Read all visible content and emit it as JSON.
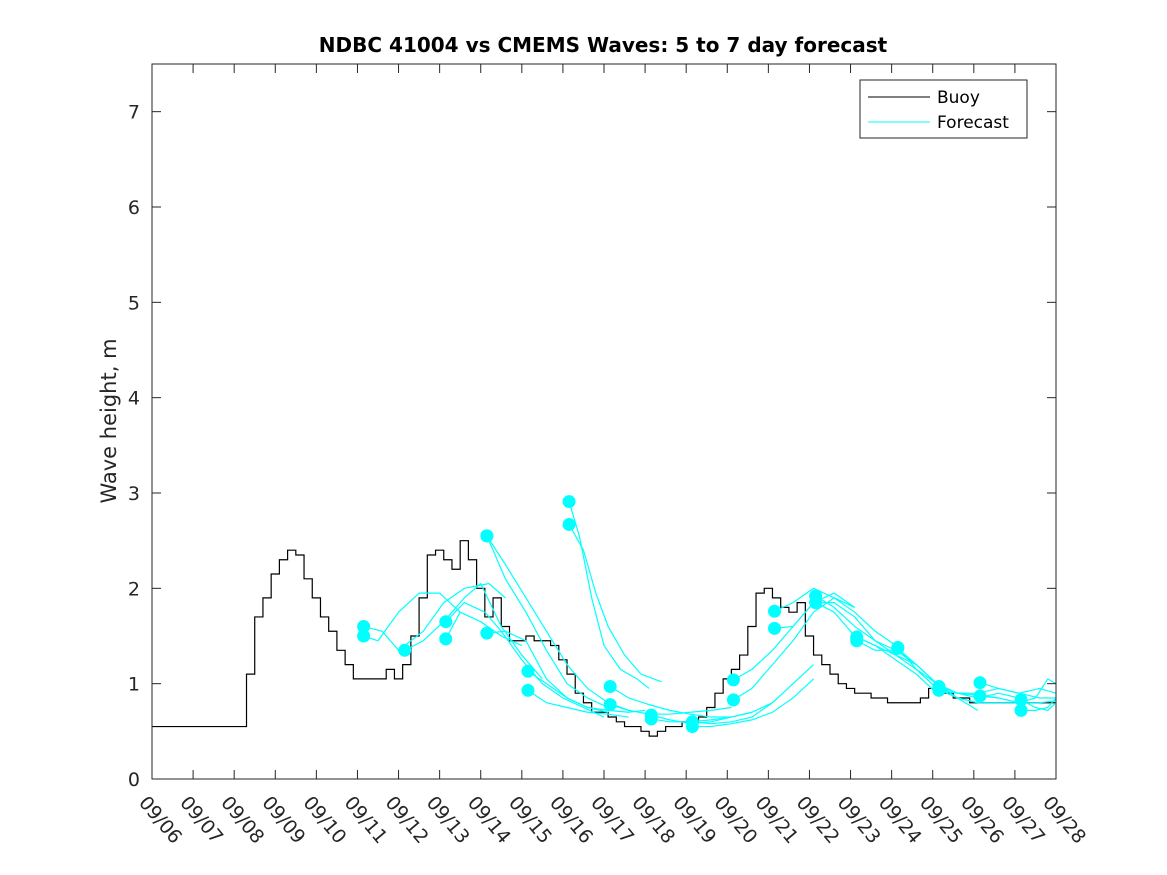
{
  "chart_data": {
    "type": "line",
    "title": "NDBC 41004 vs CMEMS Waves: 5 to 7 day forecast",
    "xlabel": "",
    "ylabel": "Wave height, m",
    "xlim": [
      "09/06",
      "09/28"
    ],
    "ylim": [
      0,
      7.5
    ],
    "x_ticks": [
      "09/06",
      "09/07",
      "09/08",
      "09/09",
      "09/10",
      "09/11",
      "09/12",
      "09/13",
      "09/14",
      "09/15",
      "09/16",
      "09/17",
      "09/18",
      "09/19",
      "09/20",
      "09/21",
      "09/22",
      "09/23",
      "09/24",
      "09/25",
      "09/26",
      "09/27",
      "09/28"
    ],
    "y_ticks": [
      0,
      1,
      2,
      3,
      4,
      5,
      6,
      7
    ],
    "grid": false,
    "legend": {
      "placement": "top-right",
      "entries": [
        "Buoy",
        "Forecast"
      ]
    },
    "colors": {
      "buoy": "#000000",
      "forecast": "#00FFFF",
      "axes": "#262626"
    },
    "series": [
      {
        "name": "Buoy",
        "x_days": [
          0,
          0.5,
          1,
          1.5,
          1.9,
          2.1,
          2.3,
          2.5,
          2.7,
          2.9,
          3.1,
          3.3,
          3.5,
          3.7,
          3.9,
          4.1,
          4.3,
          4.5,
          4.7,
          4.9,
          5.1,
          5.3,
          5.5,
          5.7,
          5.9,
          6.1,
          6.3,
          6.5,
          6.7,
          6.9,
          7.1,
          7.3,
          7.5,
          7.7,
          7.9,
          8.1,
          8.3,
          8.5,
          8.7,
          8.9,
          9.1,
          9.3,
          9.5,
          9.7,
          9.9,
          10.1,
          10.3,
          10.5,
          10.7,
          10.9,
          11.1,
          11.3,
          11.5,
          11.7,
          11.9,
          12.1,
          12.3,
          12.5,
          12.7,
          12.9,
          13.1,
          13.3,
          13.5,
          13.7,
          13.9,
          14.1,
          14.3,
          14.5,
          14.7,
          14.9,
          15.1,
          15.3,
          15.5,
          15.7,
          15.9,
          16.1,
          16.3,
          16.5,
          16.7,
          16.9,
          17.1,
          17.3,
          17.5,
          17.7,
          17.9,
          18.1,
          18.3,
          18.5,
          18.7,
          18.9,
          19.1,
          19.3,
          19.5,
          19.7,
          19.9,
          20.1,
          20.3,
          20.5,
          20.7,
          20.9,
          21.1,
          21.3,
          21.5,
          21.7,
          21.9,
          22
        ],
        "values": [
          0.55,
          0.55,
          0.55,
          0.55,
          0.55,
          0.55,
          1.1,
          1.7,
          1.9,
          2.15,
          2.3,
          2.4,
          2.35,
          2.1,
          1.9,
          1.7,
          1.55,
          1.35,
          1.2,
          1.05,
          1.05,
          1.05,
          1.05,
          1.15,
          1.05,
          1.2,
          1.5,
          1.9,
          2.35,
          2.4,
          2.3,
          2.2,
          2.5,
          2.3,
          2.0,
          1.7,
          1.9,
          1.6,
          1.45,
          1.45,
          1.5,
          1.45,
          1.45,
          1.4,
          1.25,
          1.1,
          0.9,
          0.8,
          0.7,
          0.7,
          0.65,
          0.6,
          0.55,
          0.55,
          0.5,
          0.45,
          0.5,
          0.55,
          0.55,
          0.6,
          0.6,
          0.65,
          0.75,
          0.9,
          1.05,
          1.15,
          1.3,
          1.6,
          1.95,
          2.0,
          1.9,
          1.8,
          1.75,
          1.85,
          1.5,
          1.3,
          1.2,
          1.1,
          1.0,
          0.95,
          0.9,
          0.9,
          0.85,
          0.85,
          0.8,
          0.8,
          0.8,
          0.8,
          0.85,
          0.95,
          0.95,
          0.9,
          0.85,
          0.85,
          0.8,
          0.8,
          0.8,
          0.8,
          0.8,
          0.8,
          0.8,
          0.8,
          0.8,
          0.8,
          0.8,
          0.8
        ]
      },
      {
        "name": "Forecast",
        "runs": [
          {
            "x_days": [
              5.15,
              5.5,
              6.0,
              6.5,
              7.0,
              7.5
            ],
            "values": [
              1.5,
              1.45,
              1.75,
              1.95,
              1.95,
              1.75
            ]
          },
          {
            "x_days": [
              5.15,
              5.6,
              6.0,
              6.6,
              7.1,
              7.6,
              8.2,
              8.6
            ],
            "values": [
              1.6,
              1.55,
              1.35,
              1.55,
              1.85,
              2.0,
              2.05,
              1.9
            ]
          },
          {
            "x_days": [
              6.15,
              6.6,
              7.1,
              7.6,
              8.0,
              8.5,
              9.0,
              9.5
            ],
            "values": [
              1.35,
              1.45,
              1.65,
              1.9,
              2.05,
              1.6,
              1.3,
              1.05
            ]
          },
          {
            "x_days": [
              7.15,
              7.6,
              8.1,
              8.5,
              9.0,
              9.5,
              10.0,
              10.5,
              11.0
            ],
            "values": [
              1.65,
              1.85,
              1.75,
              1.55,
              1.25,
              1.0,
              0.85,
              0.75,
              0.65
            ]
          },
          {
            "x_days": [
              7.15,
              7.5,
              8.0,
              8.5,
              9.0
            ],
            "values": [
              1.47,
              1.75,
              1.65,
              1.5,
              1.4
            ]
          },
          {
            "x_days": [
              8.15,
              8.6,
              9.1,
              9.6,
              10.1,
              10.6,
              11.1
            ],
            "values": [
              2.55,
              2.1,
              1.75,
              1.35,
              1.0,
              0.85,
              0.75
            ]
          },
          {
            "x_days": [
              8.15,
              8.6,
              9.1,
              9.6,
              10.1,
              10.6,
              11.1,
              11.6
            ],
            "values": [
              2.55,
              2.25,
              1.9,
              1.55,
              1.2,
              0.95,
              0.8,
              0.72
            ]
          },
          {
            "x_days": [
              8.15,
              8.6,
              9.1,
              9.6,
              10.1,
              10.6,
              11.1
            ],
            "values": [
              1.53,
              1.55,
              1.45,
              1.05,
              0.85,
              0.75,
              0.7
            ]
          },
          {
            "x_days": [
              9.15,
              9.6,
              10.1,
              10.6,
              11.1,
              11.6,
              12.0
            ],
            "values": [
              1.13,
              1.0,
              0.85,
              0.75,
              0.72,
              0.7,
              0.72
            ]
          },
          {
            "x_days": [
              9.15,
              9.6,
              10.1,
              10.6,
              11.1,
              11.6
            ],
            "values": [
              0.93,
              0.8,
              0.75,
              0.7,
              0.68,
              0.65
            ]
          },
          {
            "x_days": [
              10.15,
              10.4,
              10.7,
              11.0,
              11.4,
              11.8,
              12.1
            ],
            "values": [
              2.91,
              2.55,
              1.9,
              1.4,
              1.15,
              1.05,
              0.95
            ]
          },
          {
            "x_days": [
              10.15,
              10.5,
              10.8,
              11.1,
              11.5,
              11.9,
              12.4
            ],
            "values": [
              2.67,
              2.4,
              1.95,
              1.6,
              1.3,
              1.1,
              1.02
            ]
          },
          {
            "x_days": [
              11.15,
              11.6,
              12.1,
              12.6,
              13.1,
              13.6,
              14.1
            ],
            "values": [
              0.97,
              0.85,
              0.78,
              0.72,
              0.68,
              0.65,
              0.65
            ]
          },
          {
            "x_days": [
              11.15,
              11.6,
              12.1,
              12.6,
              13.1,
              13.6,
              14.1
            ],
            "values": [
              0.78,
              0.72,
              0.68,
              0.68,
              0.7,
              0.72,
              0.75
            ]
          },
          {
            "x_days": [
              12.15,
              12.6,
              13.1,
              13.6,
              14.1,
              14.6,
              15.1
            ],
            "values": [
              0.67,
              0.62,
              0.58,
              0.6,
              0.65,
              0.7,
              0.8
            ]
          },
          {
            "x_days": [
              12.15,
              12.6,
              13.1,
              13.6,
              14.1,
              14.6
            ],
            "values": [
              0.63,
              0.6,
              0.6,
              0.62,
              0.65,
              0.7
            ]
          },
          {
            "x_days": [
              13.15,
              13.6,
              14.1,
              14.6,
              15.1,
              15.6,
              16.1
            ],
            "values": [
              0.6,
              0.58,
              0.6,
              0.65,
              0.8,
              1.0,
              1.2
            ]
          },
          {
            "x_days": [
              13.15,
              13.6,
              14.1,
              14.6,
              15.1,
              15.6,
              16.1
            ],
            "values": [
              0.55,
              0.55,
              0.58,
              0.62,
              0.7,
              0.85,
              1.05
            ]
          },
          {
            "x_days": [
              14.15,
              14.6,
              15.1,
              15.6,
              16.1,
              16.6,
              17.1
            ],
            "values": [
              1.04,
              1.15,
              1.35,
              1.6,
              1.85,
              1.95,
              1.8
            ]
          },
          {
            "x_days": [
              14.15,
              14.6,
              15.1,
              15.6,
              16.1,
              16.6,
              17.1
            ],
            "values": [
              0.83,
              0.95,
              1.2,
              1.45,
              1.75,
              1.9,
              1.8
            ]
          },
          {
            "x_days": [
              15.15,
              15.6,
              16.1,
              16.6,
              17.1,
              17.6,
              18.1
            ],
            "values": [
              1.76,
              1.85,
              2.0,
              1.9,
              1.75,
              1.55,
              1.4
            ]
          },
          {
            "x_days": [
              15.15,
              15.6,
              16.1,
              16.6,
              17.1,
              17.6,
              18.1
            ],
            "values": [
              1.58,
              1.6,
              1.85,
              1.85,
              1.7,
              1.45,
              1.35
            ]
          },
          {
            "x_days": [
              16.15,
              16.6,
              17.1,
              17.6,
              18.1,
              18.6,
              19.1
            ],
            "values": [
              1.92,
              1.8,
              1.6,
              1.45,
              1.3,
              1.15,
              1.0
            ]
          },
          {
            "x_days": [
              16.15,
              16.6,
              17.1,
              17.6,
              18.1,
              18.6,
              19.1
            ],
            "values": [
              1.85,
              1.75,
              1.5,
              1.4,
              1.25,
              1.1,
              0.9
            ]
          },
          {
            "x_days": [
              17.15,
              17.6,
              18.1,
              18.6,
              19.1,
              19.6,
              20.1
            ],
            "values": [
              1.49,
              1.4,
              1.3,
              1.2,
              1.0,
              0.85,
              0.8
            ]
          },
          {
            "x_days": [
              17.15,
              17.6,
              18.1,
              18.6,
              19.1,
              19.6,
              20.1
            ],
            "values": [
              1.45,
              1.35,
              1.35,
              1.2,
              1.0,
              0.85,
              0.72
            ]
          },
          {
            "x_days": [
              18.15,
              18.6,
              19.1,
              19.6,
              20.1,
              20.6,
              21.1
            ],
            "values": [
              1.37,
              1.2,
              1.0,
              0.9,
              0.85,
              0.9,
              0.85
            ]
          },
          {
            "x_days": [
              18.15,
              18.6,
              19.1,
              19.6,
              20.1,
              20.6,
              21.1
            ],
            "values": [
              1.38,
              1.15,
              0.95,
              0.85,
              0.8,
              0.8,
              0.8
            ]
          },
          {
            "x_days": [
              19.15,
              19.6,
              20.1,
              20.6,
              21.1,
              21.6,
              22.0
            ],
            "values": [
              0.97,
              0.9,
              0.9,
              0.95,
              0.9,
              0.85,
              0.85
            ]
          },
          {
            "x_days": [
              19.15,
              19.6,
              20.1,
              20.6,
              21.1,
              21.6,
              22.0
            ],
            "values": [
              0.93,
              0.9,
              0.88,
              0.85,
              0.8,
              0.8,
              0.82
            ]
          },
          {
            "x_days": [
              20.15,
              20.6,
              21.1,
              21.6,
              22.0
            ],
            "values": [
              1.01,
              0.95,
              0.9,
              0.95,
              0.9
            ]
          },
          {
            "x_days": [
              20.15,
              20.6,
              21.1,
              21.5,
              21.8,
              22.0
            ],
            "values": [
              0.87,
              0.85,
              0.8,
              0.85,
              1.05,
              1.0
            ]
          },
          {
            "x_days": [
              21.15,
              21.5,
              21.8,
              22.0
            ],
            "values": [
              0.83,
              0.75,
              0.72,
              0.8
            ]
          },
          {
            "x_days": [
              21.15,
              21.5,
              21.8,
              22.0
            ],
            "values": [
              0.72,
              0.72,
              0.75,
              0.85
            ]
          }
        ]
      }
    ]
  }
}
